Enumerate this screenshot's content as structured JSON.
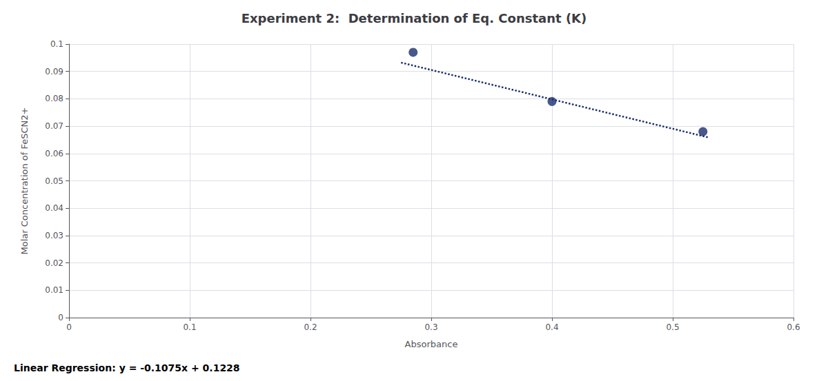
{
  "chart_data": {
    "type": "scatter",
    "title": "Experiment 2:  Determination of Eq. Constant (K)",
    "xlabel": "Absorbance",
    "ylabel": "Molar Concentration of FeSCN2+",
    "annotation": "Linear Regression: y = -0.1075x + 0.1228",
    "series": [
      {
        "type": "scatter",
        "color": "#1a2e6e",
        "marker": "circle",
        "x": [
          0.285,
          0.4,
          0.525
        ],
        "values": [
          0.097,
          0.079,
          0.068
        ]
      },
      {
        "type": "line",
        "color": "#1a2e6e",
        "line_style": "dotted",
        "x": [
          0.275,
          0.53
        ],
        "values": [
          0.0932375,
          0.065825
        ]
      }
    ],
    "xlim": [
      0,
      0.6
    ],
    "ylim": [
      0,
      0.1
    ],
    "xticks": [
      0,
      0.1,
      0.2,
      0.3,
      0.4,
      0.5,
      0.6
    ],
    "yticks": [
      0,
      0.01,
      0.02,
      0.03,
      0.04,
      0.05,
      0.06,
      0.07,
      0.08,
      0.09,
      0.1
    ],
    "grid": true
  }
}
